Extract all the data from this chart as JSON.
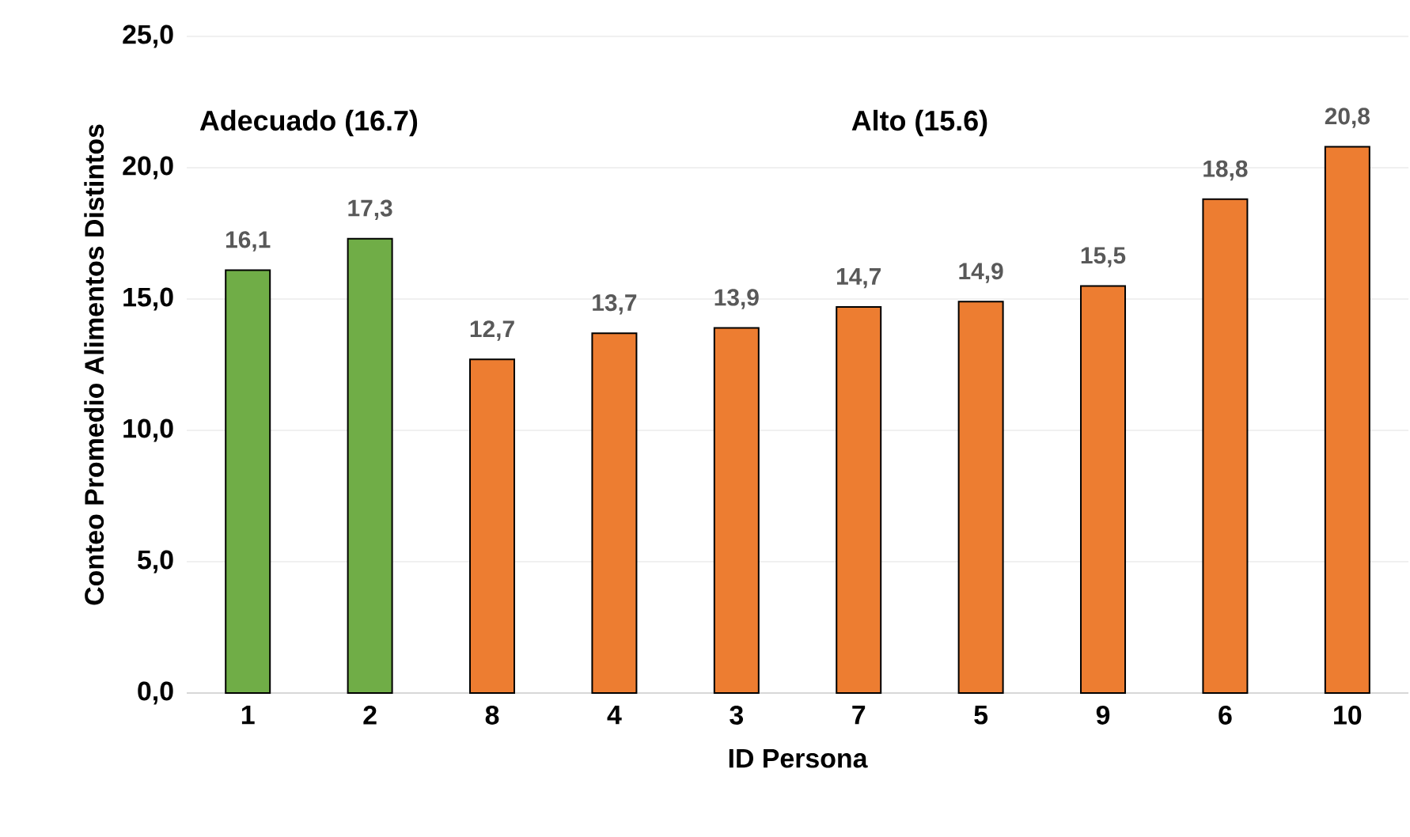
{
  "chart_data": {
    "type": "bar",
    "xlabel": "ID Persona",
    "ylabel": "Conteo Promedio Alimentos Distintos",
    "categories": [
      "1",
      "2",
      "8",
      "4",
      "3",
      "7",
      "5",
      "9",
      "6",
      "10"
    ],
    "values": [
      16.1,
      17.3,
      12.7,
      13.7,
      13.9,
      14.7,
      14.9,
      15.5,
      18.8,
      20.8
    ],
    "colors": [
      "#70ad47",
      "#70ad47",
      "#ed7d31",
      "#ed7d31",
      "#ed7d31",
      "#ed7d31",
      "#ed7d31",
      "#ed7d31",
      "#ed7d31",
      "#ed7d31"
    ],
    "value_labels": [
      "16,1",
      "17,3",
      "12,7",
      "13,7",
      "13,9",
      "14,7",
      "14,9",
      "15,5",
      "18,8",
      "20,8"
    ],
    "ylim": [
      0,
      25
    ],
    "yticks": [
      {
        "value": 0,
        "label": "0,0"
      },
      {
        "value": 5,
        "label": "5,0"
      },
      {
        "value": 10,
        "label": "10,0"
      },
      {
        "value": 15,
        "label": "15,0"
      },
      {
        "value": 20,
        "label": "20,0"
      },
      {
        "value": 25,
        "label": "25,0"
      }
    ],
    "grid": "y",
    "annotations": [
      "Adecuado (16.7)",
      "Alto (15.6)"
    ]
  }
}
